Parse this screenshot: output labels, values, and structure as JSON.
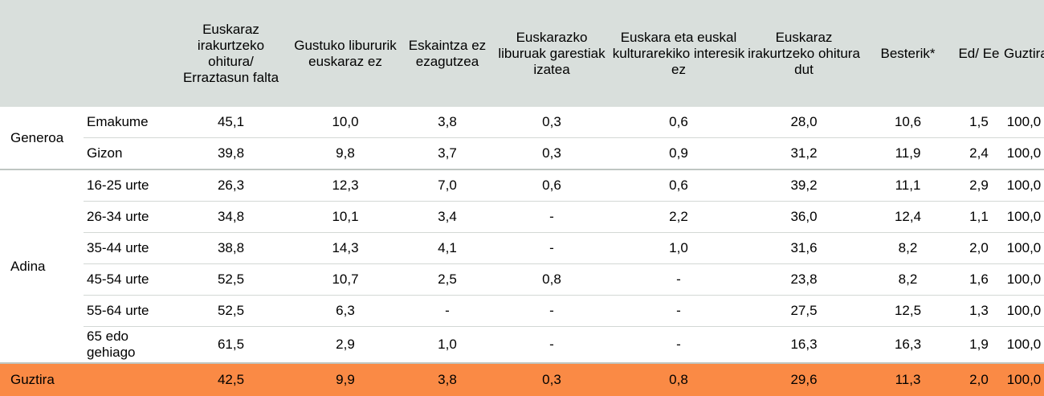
{
  "header": {
    "group": "",
    "sub": "",
    "columns": [
      "Euskaraz irakurtzeko ohitura/ Erraztasun falta",
      "Gustuko libururik euskaraz ez",
      "Eskaintza ez ezagutzea",
      "Euskarazko liburuak garestiak izatea",
      "Euskara eta euskal kulturarekiko interesik ez",
      "Euskaraz irakurtzeko ohitura dut",
      "Besterik*",
      "Ed/ Ee",
      "Guztira"
    ]
  },
  "groups": [
    {
      "label": "Generoa",
      "rows": [
        {
          "label": "Emakume",
          "values": [
            "45,1",
            "10,0",
            "3,8",
            "0,3",
            "0,6",
            "28,0",
            "10,6",
            "1,5",
            "100,0"
          ]
        },
        {
          "label": "Gizon",
          "values": [
            "39,8",
            "9,8",
            "3,7",
            "0,3",
            "0,9",
            "31,2",
            "11,9",
            "2,4",
            "100,0"
          ]
        }
      ]
    },
    {
      "label": "Adina",
      "rows": [
        {
          "label": "16-25 urte",
          "values": [
            "26,3",
            "12,3",
            "7,0",
            "0,6",
            "0,6",
            "39,2",
            "11,1",
            "2,9",
            "100,0"
          ]
        },
        {
          "label": "26-34 urte",
          "values": [
            "34,8",
            "10,1",
            "3,4",
            "-",
            "2,2",
            "36,0",
            "12,4",
            "1,1",
            "100,0"
          ]
        },
        {
          "label": "35-44 urte",
          "values": [
            "38,8",
            "14,3",
            "4,1",
            "-",
            "1,0",
            "31,6",
            "8,2",
            "2,0",
            "100,0"
          ]
        },
        {
          "label": "45-54 urte",
          "values": [
            "52,5",
            "10,7",
            "2,5",
            "0,8",
            "-",
            "23,8",
            "8,2",
            "1,6",
            "100,0"
          ]
        },
        {
          "label": "55-64 urte",
          "values": [
            "52,5",
            "6,3",
            "-",
            "-",
            "-",
            "27,5",
            "12,5",
            "1,3",
            "100,0"
          ]
        },
        {
          "label": "65 edo gehiago",
          "values": [
            "61,5",
            "2,9",
            "1,0",
            "-",
            "-",
            "16,3",
            "16,3",
            "1,9",
            "100,0"
          ]
        }
      ]
    }
  ],
  "total": {
    "label": "Guztira",
    "values": [
      "42,5",
      "9,9",
      "3,8",
      "0,3",
      "0,8",
      "29,6",
      "11,3",
      "2,0",
      "100,0"
    ]
  },
  "colors": {
    "header_bg": "#d9dfdc",
    "total_bg": "#fa8a45",
    "divider": "#bfc6c2"
  }
}
